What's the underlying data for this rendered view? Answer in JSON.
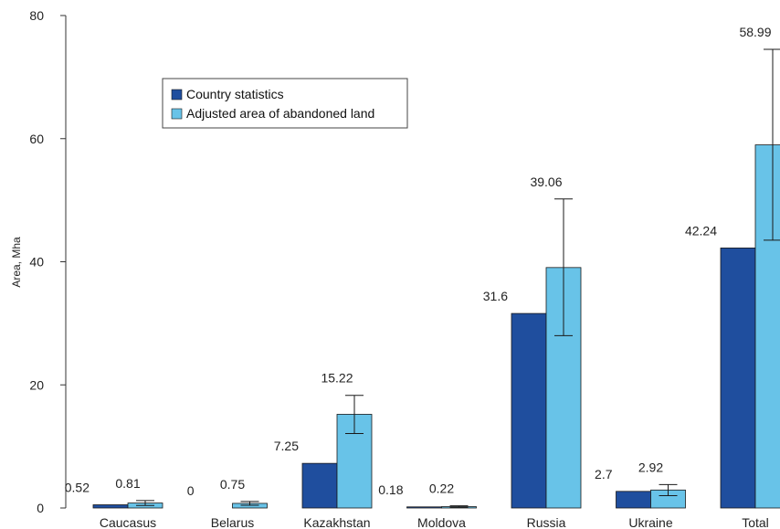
{
  "chart_data": {
    "type": "bar",
    "ylabel": "Area, Mha",
    "ylim": [
      0,
      80
    ],
    "yticks": [
      0,
      20,
      40,
      60,
      80
    ],
    "grid": false,
    "legend_position": "top-left",
    "categories": [
      "Caucasus",
      "Belarus",
      "Kazakhstan",
      "Moldova",
      "Russia",
      "Ukraine",
      "Total"
    ],
    "series": [
      {
        "name": "Country statistics",
        "color": "#1f4e9e",
        "values": [
          0.52,
          0,
          7.25,
          0.18,
          31.6,
          2.7,
          42.24
        ],
        "labels": [
          "0.52",
          "0",
          "7.25",
          "0.18",
          "31.6",
          "2.7",
          "42.24"
        ]
      },
      {
        "name": "Adjusted area of abandoned land",
        "color": "#68c3e8",
        "values": [
          0.81,
          0.75,
          15.22,
          0.22,
          39.06,
          2.92,
          58.99
        ],
        "labels": [
          "0.81",
          "0.75",
          "15.22",
          "0.22",
          "39.06",
          "2.92",
          "58.99"
        ],
        "error_low": [
          0.4,
          0.45,
          12.1,
          0.12,
          28.0,
          2.0,
          43.5
        ],
        "error_high": [
          1.2,
          1.05,
          18.3,
          0.35,
          50.2,
          3.8,
          74.5
        ]
      }
    ]
  }
}
